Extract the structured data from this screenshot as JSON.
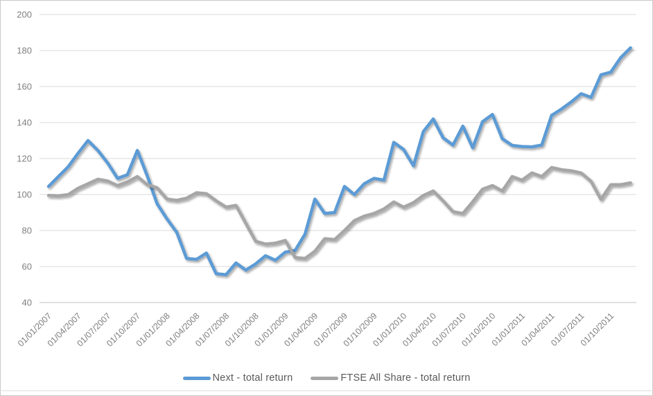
{
  "chart_data": {
    "type": "line",
    "title": "",
    "xlabel": "",
    "ylabel": "",
    "ylim": [
      40,
      200
    ],
    "yticks": [
      200,
      180,
      160,
      140,
      120,
      100,
      80,
      60,
      40
    ],
    "grid": true,
    "legend_position": "bottom",
    "points_per_tick": 3,
    "tick_labels": [
      "01/01/2007",
      "01/04/2007",
      "01/07/2007",
      "01/10/2007",
      "01/01/2008",
      "01/04/2008",
      "01/07/2008",
      "01/10/2008",
      "01/01/2009",
      "01/04/2009",
      "01/07/2009",
      "01/10/2009",
      "01/01/2010",
      "01/04/2010",
      "01/07/2010",
      "01/10/2010",
      "01/01/2011",
      "01/04/2011",
      "01/07/2011",
      "01/10/2011"
    ],
    "series": [
      {
        "name": "Next - total return",
        "color": "#5B9BD5",
        "values": [
          104.5,
          110,
          115.5,
          123,
          130,
          124.5,
          117.5,
          109,
          111,
          124.5,
          110.5,
          95,
          86.5,
          79,
          64.5,
          64,
          67.5,
          56,
          55.5,
          62,
          58,
          61.5,
          66,
          63.5,
          68,
          69,
          78,
          97.5,
          89.5,
          90,
          104.5,
          100,
          106,
          109,
          108,
          129,
          125,
          116,
          135,
          142,
          131.5,
          127.5,
          138,
          126,
          140.5,
          144.5,
          131,
          127.3,
          126.7,
          126.5,
          127.5,
          144,
          147.5,
          151.5,
          156,
          154,
          166.5,
          168,
          176,
          181.5
        ]
      },
      {
        "name": "FTSE All Share - total return",
        "color": "#A6A6A6",
        "values": [
          99.5,
          99.3,
          100,
          103.5,
          106,
          108.5,
          107.5,
          105,
          107,
          110,
          105.5,
          103.8,
          97.5,
          96.8,
          98,
          101,
          100.5,
          96.5,
          93,
          94,
          84,
          74,
          72.5,
          73,
          74.5,
          65,
          64.5,
          68.5,
          75.5,
          75,
          80,
          85.5,
          88,
          89.5,
          92,
          95.9,
          93,
          95.5,
          99.5,
          102,
          96.5,
          90.5,
          89.5,
          96,
          103,
          105,
          102,
          110,
          108,
          112,
          110,
          115,
          113.8,
          113.2,
          112,
          107.4,
          97.3,
          105.5,
          105.5,
          106.5
        ]
      }
    ],
    "grid_color": "#d9d9d9",
    "axis_color": "#bfbfbf",
    "label_color": "#7f7f7f",
    "legend_text_color": "#595959"
  }
}
